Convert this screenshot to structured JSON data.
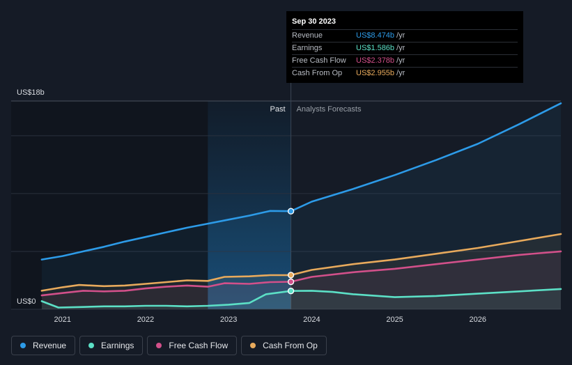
{
  "tooltip": {
    "date": "Sep 30 2023",
    "rows": [
      {
        "label": "Revenue",
        "value": "US$8.474b",
        "unit": "/yr",
        "color": "#2d9be8"
      },
      {
        "label": "Earnings",
        "value": "US$1.586b",
        "unit": "/yr",
        "color": "#5ce0c6"
      },
      {
        "label": "Free Cash Flow",
        "value": "US$2.378b",
        "unit": "/yr",
        "color": "#d2508a"
      },
      {
        "label": "Cash From Op",
        "value": "US$2.955b",
        "unit": "/yr",
        "color": "#e8aa5c"
      }
    ]
  },
  "legend": [
    {
      "label": "Revenue",
      "color": "#2d9be8"
    },
    {
      "label": "Earnings",
      "color": "#5ce0c6"
    },
    {
      "label": "Free Cash Flow",
      "color": "#d2508a"
    },
    {
      "label": "Cash From Op",
      "color": "#e8aa5c"
    }
  ],
  "chart_data": {
    "type": "line",
    "y_max_label": "US$18b",
    "y_min_label": "US$0",
    "ylim": [
      0,
      18
    ],
    "xlim": [
      2020.7,
      2027.0
    ],
    "x_ticks": [
      2021,
      2022,
      2023,
      2024,
      2025,
      2026
    ],
    "x_tick_labels": [
      "2021",
      "2022",
      "2023",
      "2024",
      "2025",
      "2026"
    ],
    "past_label": "Past",
    "forecast_label": "Analysts Forecasts",
    "past_end_x": 2023.75,
    "highlight_start_x": 2022.75,
    "series": [
      {
        "name": "Revenue",
        "color": "#2d9be8",
        "points": [
          [
            2020.75,
            4.3
          ],
          [
            2021.0,
            4.6
          ],
          [
            2021.25,
            5.0
          ],
          [
            2021.5,
            5.4
          ],
          [
            2021.75,
            5.85
          ],
          [
            2022.0,
            6.25
          ],
          [
            2022.25,
            6.65
          ],
          [
            2022.5,
            7.05
          ],
          [
            2022.75,
            7.4
          ],
          [
            2023.0,
            7.75
          ],
          [
            2023.25,
            8.1
          ],
          [
            2023.5,
            8.5
          ],
          [
            2023.75,
            8.474
          ],
          [
            2024.0,
            9.3
          ],
          [
            2024.5,
            10.4
          ],
          [
            2025.0,
            11.6
          ],
          [
            2025.5,
            12.9
          ],
          [
            2026.0,
            14.3
          ],
          [
            2026.5,
            16.0
          ],
          [
            2027.0,
            17.8
          ]
        ],
        "marker_x": 2023.75,
        "marker_y": 8.474
      },
      {
        "name": "Cash From Op",
        "color": "#e8aa5c",
        "points": [
          [
            2020.75,
            1.6
          ],
          [
            2021.0,
            1.9
          ],
          [
            2021.2,
            2.1
          ],
          [
            2021.5,
            2.0
          ],
          [
            2021.75,
            2.05
          ],
          [
            2022.0,
            2.2
          ],
          [
            2022.25,
            2.35
          ],
          [
            2022.5,
            2.5
          ],
          [
            2022.75,
            2.45
          ],
          [
            2022.95,
            2.8
          ],
          [
            2023.25,
            2.85
          ],
          [
            2023.5,
            2.95
          ],
          [
            2023.75,
            2.955
          ],
          [
            2024.0,
            3.4
          ],
          [
            2024.5,
            3.9
          ],
          [
            2025.0,
            4.3
          ],
          [
            2025.5,
            4.8
          ],
          [
            2026.0,
            5.3
          ],
          [
            2026.5,
            5.9
          ],
          [
            2027.0,
            6.5
          ]
        ],
        "marker_x": 2023.75,
        "marker_y": 2.955
      },
      {
        "name": "Free Cash Flow",
        "color": "#d2508a",
        "points": [
          [
            2020.75,
            1.2
          ],
          [
            2021.0,
            1.4
          ],
          [
            2021.25,
            1.6
          ],
          [
            2021.5,
            1.55
          ],
          [
            2021.75,
            1.6
          ],
          [
            2022.0,
            1.8
          ],
          [
            2022.25,
            1.95
          ],
          [
            2022.5,
            2.05
          ],
          [
            2022.75,
            1.95
          ],
          [
            2022.95,
            2.25
          ],
          [
            2023.25,
            2.2
          ],
          [
            2023.5,
            2.35
          ],
          [
            2023.75,
            2.378
          ],
          [
            2024.0,
            2.8
          ],
          [
            2024.5,
            3.2
          ],
          [
            2025.0,
            3.5
          ],
          [
            2025.5,
            3.9
          ],
          [
            2026.0,
            4.3
          ],
          [
            2026.5,
            4.7
          ],
          [
            2027.0,
            5.0
          ]
        ],
        "marker_x": 2023.75,
        "marker_y": 2.378
      },
      {
        "name": "Earnings",
        "color": "#5ce0c6",
        "points": [
          [
            2020.75,
            0.7
          ],
          [
            2020.95,
            0.15
          ],
          [
            2021.25,
            0.2
          ],
          [
            2021.5,
            0.25
          ],
          [
            2021.75,
            0.25
          ],
          [
            2022.0,
            0.3
          ],
          [
            2022.25,
            0.3
          ],
          [
            2022.5,
            0.25
          ],
          [
            2022.75,
            0.3
          ],
          [
            2023.0,
            0.4
          ],
          [
            2023.25,
            0.55
          ],
          [
            2023.45,
            1.3
          ],
          [
            2023.75,
            1.586
          ],
          [
            2024.0,
            1.6
          ],
          [
            2024.25,
            1.5
          ],
          [
            2024.5,
            1.3
          ],
          [
            2025.0,
            1.05
          ],
          [
            2025.5,
            1.15
          ],
          [
            2026.0,
            1.35
          ],
          [
            2026.5,
            1.55
          ],
          [
            2027.0,
            1.75
          ]
        ],
        "marker_x": 2023.75,
        "marker_y": 1.586
      }
    ]
  }
}
